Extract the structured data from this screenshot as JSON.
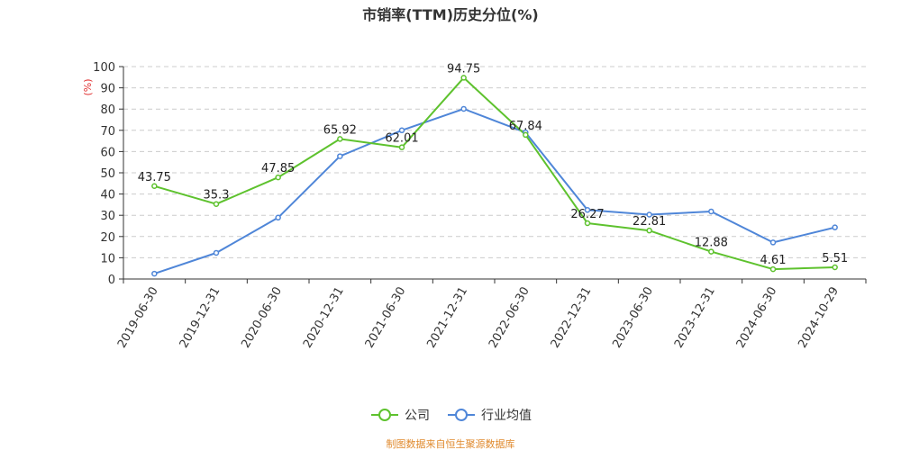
{
  "chart_data": {
    "type": "line",
    "title": "市销率(TTM)历史分位(%)",
    "ylabel": "(%)",
    "ylim": [
      0,
      100
    ],
    "yticks": [
      0,
      10,
      20,
      30,
      40,
      50,
      60,
      70,
      80,
      90,
      100
    ],
    "categories": [
      "2019-06-30",
      "2019-12-31",
      "2020-06-30",
      "2020-12-31",
      "2021-06-30",
      "2021-12-31",
      "2022-06-30",
      "2022-12-31",
      "2023-06-30",
      "2023-12-31",
      "2024-06-30",
      "2024-10-29"
    ],
    "grid": "horizontal dashed",
    "legend_position": "bottom",
    "series": [
      {
        "name": "公司",
        "color": "#5ec22e",
        "values": [
          43.75,
          35.3,
          47.85,
          65.92,
          62.01,
          94.75,
          67.84,
          26.27,
          22.81,
          12.88,
          4.61,
          5.51
        ],
        "labels": [
          "43.75",
          "35.3",
          "47.85",
          "65.92",
          "62.01",
          "94.75",
          "67.84",
          "26.27",
          "22.81",
          "12.88",
          "4.61",
          "5.51"
        ]
      },
      {
        "name": "行业均值",
        "color": "#4f86d8",
        "values": [
          2.5,
          12.3,
          28.9,
          57.8,
          70.0,
          80.1,
          69.0,
          32.5,
          30.3,
          31.8,
          17.2,
          24.3
        ]
      }
    ]
  },
  "source": "制图数据来自恒生聚源数据库",
  "colors": {
    "axis": "#333333",
    "grid": "#cccccc",
    "unit": "#e03030",
    "source": "#e08a2e"
  }
}
